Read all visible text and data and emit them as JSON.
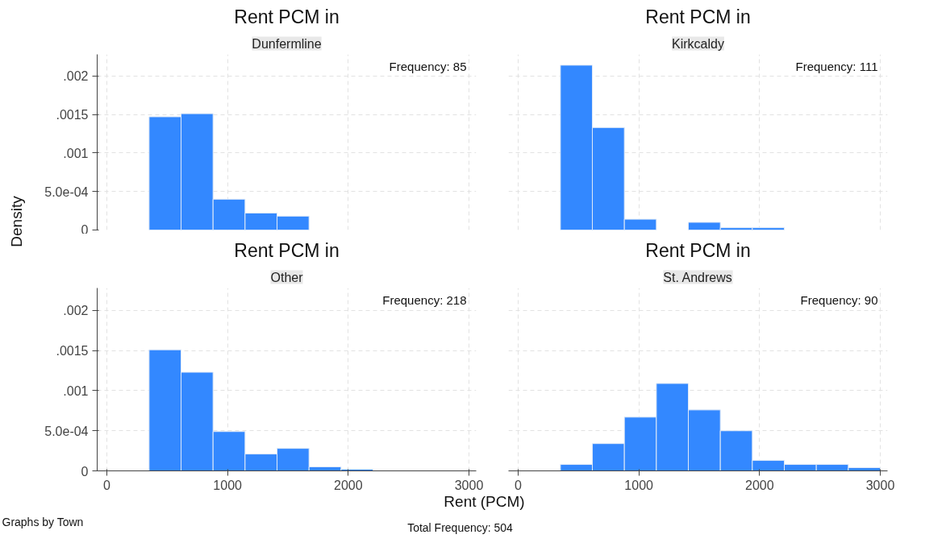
{
  "chart_data": [
    {
      "type": "histogram",
      "title": "Rent PCM in",
      "subtitle": "Dunfermline",
      "ylabel": "Density",
      "annotations": [
        "Frequency: 85"
      ],
      "bins": [
        350,
        615,
        880,
        1145,
        1410,
        1675
      ],
      "values": [
        0.00147,
        0.00151,
        0.0004,
        0.00022,
        0.00018
      ],
      "color": "#3388ff",
      "xlim": [
        -80,
        3060
      ],
      "ylim": [
        0,
        0.00228
      ],
      "xticks": [
        0,
        1000,
        2000,
        3000
      ],
      "yticks": [
        {
          "value": 0,
          "label": "0"
        },
        {
          "value": 0.0005,
          "label": "5.0e-04"
        },
        {
          "value": 0.001,
          "label": ".001"
        },
        {
          "value": 0.0015,
          "label": ".0015"
        },
        {
          "value": 0.002,
          "label": ".002"
        }
      ],
      "grid": true,
      "tick_labels": "y"
    },
    {
      "type": "histogram",
      "title": "Rent PCM in",
      "subtitle": "Kirkcaldy",
      "annotations": [
        "Frequency: 111"
      ],
      "bins": [
        350,
        615,
        880,
        1145,
        1410,
        1675,
        1940,
        2205
      ],
      "values": [
        0.00214,
        0.00133,
        0.00014,
        null,
        0.0001,
        3e-05,
        3e-05
      ],
      "color": "#3388ff",
      "xlim": [
        -80,
        3060
      ],
      "ylim": [
        0,
        0.00228
      ],
      "xticks": [
        0,
        1000,
        2000,
        3000
      ],
      "yticks": [
        0,
        0.0005,
        0.001,
        0.0015,
        0.002
      ],
      "grid": true,
      "tick_labels": false
    },
    {
      "type": "histogram",
      "title": "Rent PCM in",
      "subtitle": "Other",
      "xlabel": "Rent (PCM)",
      "annotations": [
        "Frequency: 218",
        "Graphs by Town",
        "Total Frequency: 504"
      ],
      "bins": [
        350,
        615,
        880,
        1145,
        1410,
        1675,
        1940,
        2205
      ],
      "values": [
        0.00151,
        0.00123,
        0.00049,
        0.00021,
        0.00028,
        5e-05,
        2e-05
      ],
      "color": "#3388ff",
      "xlim": [
        -80,
        3060
      ],
      "ylim": [
        0,
        0.00228
      ],
      "xticks": [
        0,
        1000,
        2000,
        3000
      ],
      "yticks": [
        {
          "value": 0,
          "label": "0"
        },
        {
          "value": 0.0005,
          "label": "5.0e-04"
        },
        {
          "value": 0.001,
          "label": ".001"
        },
        {
          "value": 0.0015,
          "label": ".0015"
        },
        {
          "value": 0.002,
          "label": ".002"
        }
      ],
      "grid": true
    },
    {
      "type": "histogram",
      "title": "Rent PCM in",
      "subtitle": "St. Andrews",
      "annotations": [
        "Frequency: 90"
      ],
      "bins": [
        350,
        615,
        880,
        1145,
        1410,
        1675,
        1940,
        2205,
        2470,
        2735,
        3000
      ],
      "values": [
        8e-05,
        0.00034,
        0.00067,
        0.00109,
        0.00076,
        0.0005,
        0.00013,
        8e-05,
        8e-05,
        4e-05
      ],
      "color": "#3388ff",
      "xlim": [
        -80,
        3060
      ],
      "ylim": [
        0,
        0.00228
      ],
      "xticks": [
        0,
        1000,
        2000,
        3000
      ],
      "yticks": [
        0,
        0.0005,
        0.001,
        0.0015,
        0.002
      ],
      "grid": true,
      "tick_labels": "x"
    }
  ]
}
